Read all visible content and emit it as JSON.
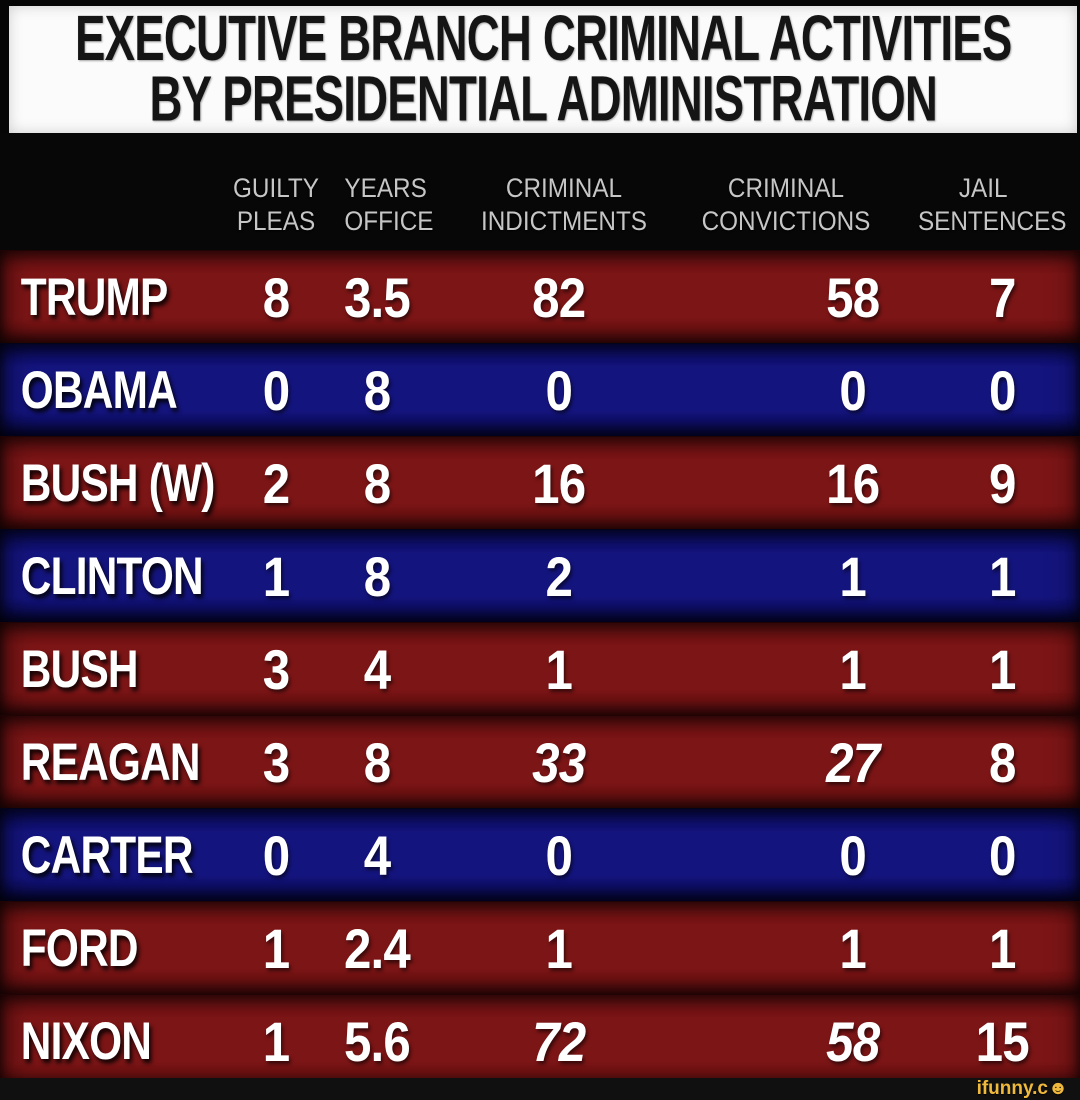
{
  "title": {
    "line1": "EXECUTIVE BRANCH CRIMINAL ACTIVITIES",
    "line2": "BY PRESIDENTIAL ADMINISTRATION"
  },
  "colors": {
    "red": "#7c1516",
    "blue": "#14147e",
    "title_bg": "#fbfbfb",
    "title_text": "#151515",
    "header_text": "#c6c6c6",
    "number_text": "#ffffff",
    "watermark": "#eeb93c"
  },
  "watermark": {
    "text": "ifunny.c",
    "smiley_icon": "☻"
  },
  "chart_data": {
    "type": "table",
    "title": "EXECUTIVE BRANCH CRIMINAL ACTIVITIES BY PRESIDENTIAL ADMINISTRATION",
    "columns": [
      {
        "key": "guilty_pleas",
        "label_lines": [
          "GUILTY",
          "PLEAS"
        ]
      },
      {
        "key": "years_office",
        "label_lines": [
          "YEARS",
          "OFFICE"
        ]
      },
      {
        "key": "criminal_indictments",
        "label_lines": [
          "CRIMINAL",
          "INDICTMENTS"
        ]
      },
      {
        "key": "criminal_convictions",
        "label_lines": [
          "CRIMINAL",
          "CONVICTIONS"
        ]
      },
      {
        "key": "jail_sentences",
        "label_lines": [
          "JAIL",
          "SENTENCES"
        ]
      }
    ],
    "rows": [
      {
        "president": "TRUMP",
        "party_color": "red",
        "values": [
          "8",
          "3.5",
          "82",
          "58",
          "7"
        ],
        "italic_cols": []
      },
      {
        "president": "OBAMA",
        "party_color": "blue",
        "values": [
          "0",
          "8",
          "0",
          "0",
          "0"
        ],
        "italic_cols": []
      },
      {
        "president": "BUSH (W)",
        "party_color": "red",
        "values": [
          "2",
          "8",
          "16",
          "16",
          "9"
        ],
        "italic_cols": []
      },
      {
        "president": "CLINTON",
        "party_color": "blue",
        "values": [
          "1",
          "8",
          "2",
          "1",
          "1"
        ],
        "italic_cols": []
      },
      {
        "president": "BUSH",
        "party_color": "red",
        "values": [
          "3",
          "4",
          "1",
          "1",
          "1"
        ],
        "italic_cols": []
      },
      {
        "president": "REAGAN",
        "party_color": "red",
        "values": [
          "3",
          "8",
          "33",
          "27",
          "8"
        ],
        "italic_cols": [
          2,
          3
        ]
      },
      {
        "president": "CARTER",
        "party_color": "blue",
        "values": [
          "0",
          "4",
          "0",
          "0",
          "0"
        ],
        "italic_cols": []
      },
      {
        "president": "FORD",
        "party_color": "red",
        "values": [
          "1",
          "2.4",
          "1",
          "1",
          "1"
        ],
        "italic_cols": []
      },
      {
        "president": "NIXON",
        "party_color": "red",
        "values": [
          "1",
          "5.6",
          "72",
          "58",
          "15"
        ],
        "italic_cols": [
          2,
          3
        ]
      }
    ]
  }
}
